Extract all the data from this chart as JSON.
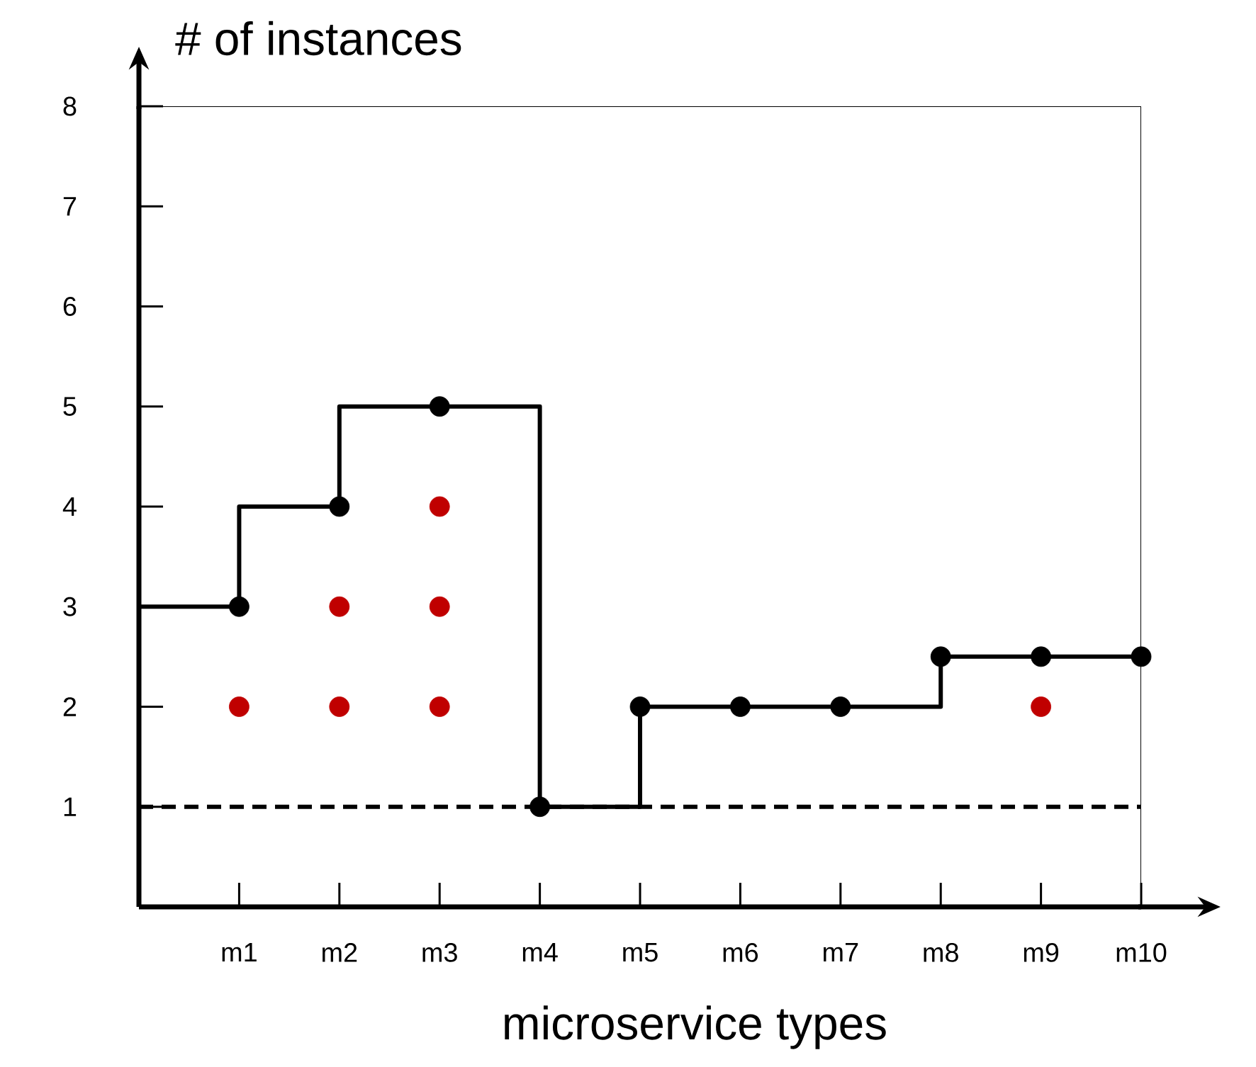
{
  "chart_data": {
    "type": "step",
    "xlabel": "microservice types",
    "ylabel": "# of instances",
    "categories": [
      null,
      "m1",
      "m2",
      "m3",
      "m4",
      "m5",
      "m6",
      "m7",
      "m8",
      "m9",
      "m10"
    ],
    "ylim": [
      0,
      8
    ],
    "yticks": [
      1,
      2,
      3,
      4,
      5,
      6,
      7,
      8
    ],
    "grid": false,
    "series": [
      {
        "values": [
          3,
          4,
          5,
          5,
          1,
          2,
          2,
          2,
          2.5,
          2.5,
          2.5
        ],
        "color": "#000000",
        "marker": "none",
        "line_style": "solid"
      },
      {
        "type": "scatter",
        "values": [
          null,
          3,
          4,
          5,
          1,
          2,
          2,
          2,
          2.5,
          2.5,
          2.5
        ],
        "color": "#000000",
        "marker": "circle"
      },
      {
        "type": "scatter",
        "values": [
          null,
          2,
          2,
          2,
          null,
          null,
          null,
          null,
          null,
          2,
          null
        ],
        "color": "#c00000",
        "marker": "circle"
      },
      {
        "type": "scatter",
        "values": [
          null,
          null,
          3,
          3,
          null,
          null,
          null,
          null,
          null,
          null,
          null
        ],
        "color": "#c00000",
        "marker": "circle"
      },
      {
        "type": "scatter",
        "values": [
          null,
          null,
          null,
          4,
          null,
          null,
          null,
          null,
          null,
          null,
          null
        ],
        "color": "#c00000",
        "marker": "circle"
      }
    ],
    "ref_lines": [
      {
        "axis": "y",
        "value": 1,
        "line_style": "dashed",
        "color": "#000000"
      }
    ]
  }
}
